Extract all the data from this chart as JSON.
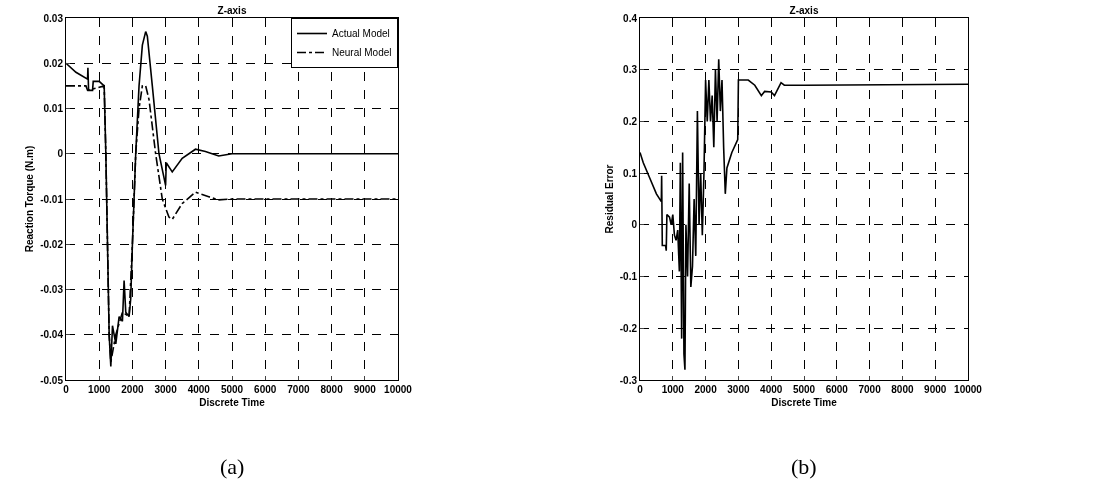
{
  "chart_data": [
    {
      "type": "line",
      "title": "Z-axis",
      "xlabel": "Discrete Time",
      "ylabel": "Reaction Torque (N.m)",
      "annotations": [
        "(a)"
      ],
      "xlim": [
        0,
        10000
      ],
      "xticks": [
        0,
        1000,
        2000,
        3000,
        4000,
        5000,
        6000,
        7000,
        8000,
        9000,
        10000
      ],
      "ylim": [
        -0.05,
        0.03
      ],
      "yticks": [
        -0.05,
        -0.04,
        -0.03,
        -0.02,
        -0.01,
        0,
        0.01,
        0.02,
        0.03
      ],
      "grid": true,
      "legend": "top right",
      "marker": "none",
      "series": [
        {
          "name": "Actual Model",
          "color": "#000000",
          "line_style": "solid",
          "x": [
            0,
            300,
            650,
            660,
            680,
            800,
            820,
            1000,
            1150,
            1200,
            1300,
            1350,
            1400,
            1500,
            1600,
            1700,
            1750,
            1800,
            1900,
            1950,
            2000,
            2100,
            2200,
            2300,
            2400,
            2450,
            2600,
            2800,
            3000,
            3020,
            3200,
            3500,
            3900,
            4200,
            4600,
            5000,
            10000
          ],
          "values": [
            0.02,
            0.018,
            0.0165,
            0.019,
            0.014,
            0.014,
            0.016,
            0.016,
            0.015,
            0.0,
            -0.04,
            -0.047,
            -0.038,
            -0.042,
            -0.036,
            -0.037,
            -0.028,
            -0.035,
            -0.036,
            -0.032,
            -0.02,
            0.0,
            0.015,
            0.024,
            0.027,
            0.026,
            0.015,
            0.0,
            -0.007,
            -0.002,
            -0.004,
            -0.001,
            0.001,
            0.0005,
            -0.0005,
            0,
            0
          ]
        },
        {
          "name": "Neural Model",
          "color": "#000000",
          "line_style": "dashed",
          "x": [
            0,
            600,
            650,
            1150,
            1200,
            1300,
            1350,
            1500,
            1700,
            1900,
            2000,
            2100,
            2200,
            2300,
            2400,
            2500,
            2700,
            2900,
            3100,
            3200,
            3500,
            3900,
            4300,
            4600,
            5000,
            10000
          ],
          "values": [
            0.015,
            0.015,
            0.014,
            0.015,
            0.0,
            -0.04,
            -0.046,
            -0.04,
            -0.035,
            -0.036,
            -0.02,
            0.0,
            0.01,
            0.015,
            0.015,
            0.012,
            0.0,
            -0.01,
            -0.014,
            -0.0145,
            -0.011,
            -0.0085,
            -0.0095,
            -0.0102,
            -0.01,
            -0.01
          ]
        }
      ]
    },
    {
      "type": "line",
      "title": "Z-axis",
      "xlabel": "Discrete Time",
      "ylabel": "Residual Error",
      "annotations": [
        "(b)"
      ],
      "xlim": [
        0,
        10000
      ],
      "xticks": [
        0,
        1000,
        2000,
        3000,
        4000,
        5000,
        6000,
        7000,
        8000,
        9000,
        10000
      ],
      "ylim": [
        -0.3,
        0.4
      ],
      "yticks": [
        -0.3,
        -0.2,
        -0.1,
        0,
        0.1,
        0.2,
        0.3,
        0.4
      ],
      "grid": true,
      "legend": false,
      "marker": "none",
      "series": [
        {
          "color": "#000000",
          "line_style": "solid",
          "x": [
            0,
            100,
            300,
            500,
            650,
            660,
            680,
            780,
            800,
            820,
            900,
            950,
            1000,
            1050,
            1100,
            1150,
            1200,
            1230,
            1270,
            1300,
            1340,
            1370,
            1400,
            1450,
            1500,
            1550,
            1600,
            1650,
            1700,
            1750,
            1800,
            1850,
            1900,
            1950,
            2000,
            2050,
            2100,
            2150,
            2200,
            2250,
            2300,
            2350,
            2400,
            2450,
            2500,
            2550,
            2600,
            2650,
            2800,
            2980,
            3000,
            3300,
            3500,
            3700,
            3800,
            4000,
            4100,
            4300,
            4400,
            5000,
            10000
          ],
          "values": [
            0.14,
            0.12,
            0.09,
            0.06,
            0.045,
            0.095,
            -0.04,
            -0.04,
            -0.05,
            0.02,
            0.015,
            0.0,
            0.02,
            -0.02,
            -0.03,
            -0.01,
            -0.09,
            0.12,
            -0.22,
            0.14,
            -0.25,
            -0.28,
            0.0,
            -0.1,
            0.08,
            -0.12,
            -0.08,
            0.05,
            -0.06,
            0.22,
            0.0,
            0.1,
            -0.02,
            0.1,
            0.28,
            0.2,
            0.28,
            0.2,
            0.25,
            0.15,
            0.3,
            0.2,
            0.32,
            0.22,
            0.28,
            0.15,
            0.06,
            0.11,
            0.14,
            0.165,
            0.28,
            0.28,
            0.27,
            0.25,
            0.258,
            0.257,
            0.25,
            0.275,
            0.27,
            0.27,
            0.272
          ]
        }
      ]
    }
  ]
}
